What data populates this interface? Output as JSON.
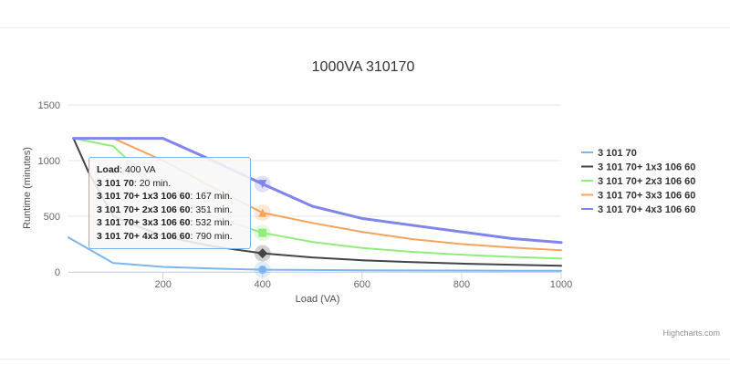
{
  "chart_data": {
    "type": "line",
    "title": "1000VA 310170",
    "xlabel": "Load (VA)",
    "ylabel": "Runtime (minutes)",
    "xlim": [
      10,
      1000
    ],
    "ylim": [
      0,
      1500
    ],
    "xticks": [
      200,
      400,
      600,
      800,
      1000
    ],
    "yticks": [
      0,
      500,
      1000,
      1500
    ],
    "grid": true,
    "legend": "right",
    "series": [
      {
        "name": "3 101 70",
        "color": "#7cb5ec",
        "marker": "circle",
        "points": [
          [
            10,
            310
          ],
          [
            100,
            80
          ],
          [
            200,
            45
          ],
          [
            300,
            30
          ],
          [
            400,
            20
          ],
          [
            500,
            17
          ],
          [
            600,
            15
          ],
          [
            700,
            13
          ],
          [
            800,
            12
          ],
          [
            900,
            11
          ],
          [
            1000,
            10
          ]
        ]
      },
      {
        "name": "3 101 70+ 1x3 106 60",
        "color": "#434348",
        "marker": "diamond",
        "points": [
          [
            20,
            1200
          ],
          [
            50,
            900
          ],
          [
            100,
            500
          ],
          [
            200,
            320
          ],
          [
            300,
            230
          ],
          [
            400,
            167
          ],
          [
            500,
            130
          ],
          [
            600,
            105
          ],
          [
            700,
            88
          ],
          [
            800,
            75
          ],
          [
            900,
            65
          ],
          [
            1000,
            55
          ]
        ]
      },
      {
        "name": "3 101 70+ 2x3 106 60",
        "color": "#90ed7d",
        "marker": "square",
        "points": [
          [
            20,
            1200
          ],
          [
            100,
            1130
          ],
          [
            150,
            920
          ],
          [
            200,
            720
          ],
          [
            300,
            500
          ],
          [
            400,
            351
          ],
          [
            500,
            270
          ],
          [
            600,
            215
          ],
          [
            700,
            180
          ],
          [
            800,
            155
          ],
          [
            900,
            135
          ],
          [
            1000,
            120
          ]
        ]
      },
      {
        "name": "3 101 70+ 3x3 106 60",
        "color": "#f7a35c",
        "marker": "triangle",
        "points": [
          [
            20,
            1200
          ],
          [
            100,
            1200
          ],
          [
            150,
            1100
          ],
          [
            200,
            1000
          ],
          [
            300,
            760
          ],
          [
            400,
            532
          ],
          [
            500,
            440
          ],
          [
            600,
            360
          ],
          [
            700,
            295
          ],
          [
            800,
            250
          ],
          [
            900,
            220
          ],
          [
            1000,
            195
          ]
        ]
      },
      {
        "name": "3 101 70+ 4x3 106 60",
        "color": "#8085e9",
        "marker": "triangle-down",
        "points": [
          [
            20,
            1200
          ],
          [
            100,
            1200
          ],
          [
            200,
            1200
          ],
          [
            300,
            1000
          ],
          [
            400,
            790
          ],
          [
            500,
            590
          ],
          [
            600,
            480
          ],
          [
            700,
            420
          ],
          [
            800,
            360
          ],
          [
            900,
            300
          ],
          [
            1000,
            265
          ]
        ]
      }
    ],
    "tooltip": {
      "x_label": "Load",
      "x_value": "400 VA",
      "rows": [
        {
          "series": "3 101 70",
          "value": "20 min."
        },
        {
          "series": "3 101 70+ 1x3 106 60",
          "value": "167 min."
        },
        {
          "series": "3 101 70+ 2x3 106 60",
          "value": "351 min."
        },
        {
          "series": "3 101 70+ 3x3 106 60",
          "value": "532 min."
        },
        {
          "series": "3 101 70+ 4x3 106 60",
          "value": "790 min."
        }
      ]
    },
    "hover_x": 400,
    "credits": "Highcharts.com"
  }
}
